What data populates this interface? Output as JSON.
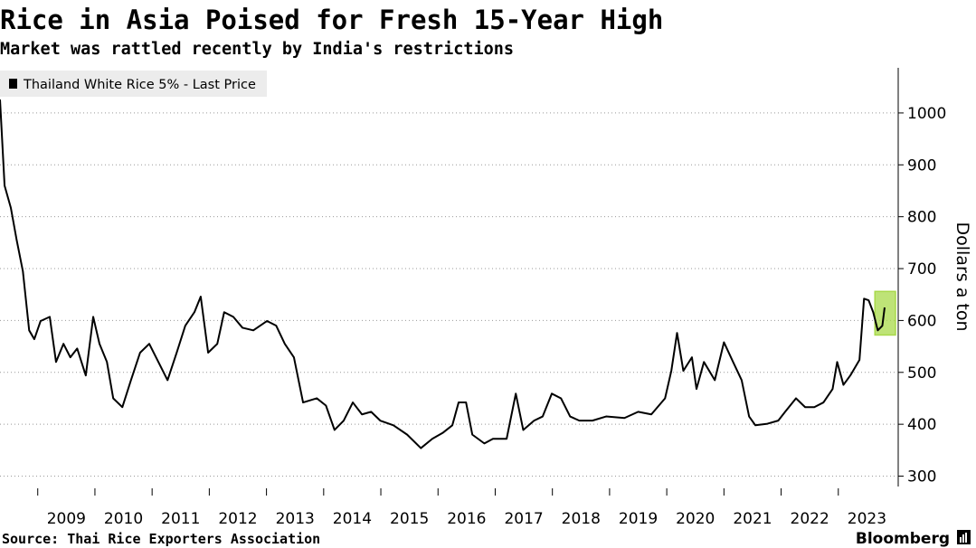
{
  "chart_data": {
    "type": "line",
    "title": "Rice in Asia Poised for Fresh 15-Year High",
    "subtitle": "Market was rattled recently by India's restrictions",
    "y_label": "Dollars a ton",
    "source": "Source: Thai Rice Exporters Association",
    "brand": "Bloomberg",
    "x": [
      2008.34,
      2008.42,
      2008.53,
      2008.63,
      2008.74,
      2008.85,
      2008.94,
      2009.05,
      2009.21,
      2009.32,
      2009.45,
      2009.57,
      2009.69,
      2009.84,
      2009.97,
      2010.08,
      2010.21,
      2010.32,
      2010.48,
      2010.63,
      2010.79,
      2010.95,
      2011.11,
      2011.27,
      2011.43,
      2011.58,
      2011.74,
      2011.85,
      2011.98,
      2012.14,
      2012.26,
      2012.42,
      2012.58,
      2012.77,
      2013.01,
      2013.17,
      2013.32,
      2013.48,
      2013.64,
      2013.88,
      2014.04,
      2014.19,
      2014.35,
      2014.51,
      2014.67,
      2014.83,
      2014.99,
      2015.22,
      2015.46,
      2015.7,
      2015.9,
      2016.09,
      2016.25,
      2016.36,
      2016.49,
      2016.6,
      2016.81,
      2016.96,
      2017.2,
      2017.36,
      2017.49,
      2017.68,
      2017.83,
      2017.99,
      2018.15,
      2018.31,
      2018.47,
      2018.7,
      2018.94,
      2019.26,
      2019.5,
      2019.73,
      2019.97,
      2020.08,
      2020.18,
      2020.29,
      2020.44,
      2020.52,
      2020.65,
      2020.84,
      2021.0,
      2021.16,
      2021.31,
      2021.44,
      2021.55,
      2021.76,
      2021.95,
      2022.07,
      2022.26,
      2022.42,
      2022.58,
      2022.74,
      2022.9,
      2022.98,
      2023.09,
      2023.21,
      2023.37,
      2023.45,
      2023.53,
      2023.61,
      2023.69,
      2023.77,
      2023.81
    ],
    "series": [
      {
        "name": "Thailand White Rice 5% - Last Price",
        "color": "#000000",
        "values": [
          1026,
          860,
          817,
          756,
          695,
          581,
          564,
          599,
          607,
          520,
          555,
          529,
          546,
          494,
          607,
          555,
          520,
          450,
          433,
          485,
          538,
          555,
          520,
          485,
          538,
          590,
          616,
          646,
          538,
          555,
          616,
          607,
          586,
          581,
          599,
          590,
          555,
          529,
          442,
          450,
          436,
          389,
          407,
          442,
          419,
          424,
          407,
          398,
          380,
          354,
          372,
          384,
          398,
          442,
          442,
          380,
          363,
          372,
          372,
          459,
          389,
          407,
          415,
          459,
          450,
          415,
          407,
          407,
          415,
          412,
          424,
          419,
          450,
          503,
          576,
          503,
          529,
          468,
          520,
          485,
          558,
          520,
          485,
          415,
          398,
          401,
          407,
          424,
          450,
          433,
          433,
          442,
          468,
          520,
          476,
          494,
          524,
          642,
          639,
          616,
          581,
          590,
          625
        ]
      }
    ],
    "highlight": {
      "x": [
        2023.64,
        2024.0
      ],
      "y": [
        572,
        656
      ],
      "color": "#a8d94a"
    },
    "xlim": [
      2008.34,
      2024.0
    ],
    "xticks": [
      2009,
      2010,
      2011,
      2012,
      2013,
      2014,
      2015,
      2016,
      2017,
      2018,
      2019,
      2020,
      2021,
      2022,
      2023
    ],
    "ylim": [
      280,
      1087
    ],
    "yticks": [
      300,
      400,
      500,
      600,
      700,
      800,
      900,
      1000
    ],
    "grid": true,
    "legend": "top-left"
  }
}
